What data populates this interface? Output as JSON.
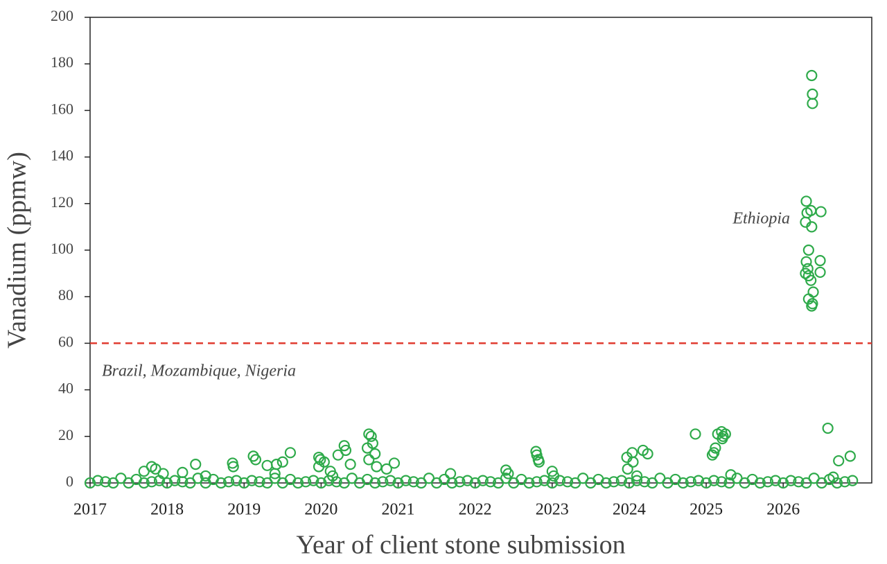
{
  "chart_data": {
    "type": "scatter",
    "x_label": "Year of client stone submission",
    "y_label": "Vanadium (ppmw)",
    "annotations": [
      "Ethiopia",
      "Brazil, Mozambique, Nigeria"
    ],
    "reference_line": {
      "value": 60,
      "color": "#e03a2f"
    },
    "color": "#2eaa4a",
    "xlim": [
      2017,
      2027.15
    ],
    "ylim": [
      0,
      200
    ],
    "xticks": [
      2017,
      2018,
      2019,
      2020,
      2021,
      2022,
      2023,
      2024,
      2025,
      2026
    ],
    "yticks": [
      0,
      20,
      40,
      60,
      80,
      100,
      120,
      140,
      160,
      180,
      200
    ],
    "x": [
      2026.37,
      2026.38,
      2026.38,
      2026.3,
      2026.31,
      2026.36,
      2026.49,
      2026.29,
      2026.37,
      2026.33,
      2026.3,
      2026.48,
      2026.32,
      2026.29,
      2026.48,
      2026.33,
      2026.36,
      2026.39,
      2026.33,
      2026.38,
      2026.37,
      2025.15,
      2025.2,
      2025.25,
      2025.22,
      2025.21,
      2025.12,
      2025.1,
      2025.08,
      2024.86,
      2026.58,
      2026.87,
      2026.72,
      2020.62,
      2020.65,
      2020.67,
      2020.6,
      2020.7,
      2020.62,
      2020.72,
      2020.85,
      2020.3,
      2020.32,
      2020.22,
      2019.97,
      2019.99,
      2020.38,
      2020.04,
      2019.97,
      2020.12,
      2020.15,
      2019.12,
      2019.15,
      2018.85,
      2018.86,
      2019.3,
      2019.5,
      2019.6,
      2019.42,
      2019.4,
      2018.37,
      2017.8,
      2017.85,
      2017.7,
      2017.95,
      2018.2,
      2018.5,
      2020.95,
      2022.79,
      2022.8,
      2022.82,
      2022.83,
      2022.4,
      2022.43,
      2023.0,
      2023.02,
      2023.97,
      2024.04,
      2024.18,
      2024.24,
      2024.05,
      2023.98,
      2024.1,
      2025.32,
      2021.68,
      2026.65,
      2017.0,
      2017.1,
      2017.2,
      2017.3,
      2017.4,
      2017.5,
      2017.6,
      2017.7,
      2017.8,
      2017.9,
      2018.0,
      2018.1,
      2018.2,
      2018.3,
      2018.4,
      2018.5,
      2018.6,
      2018.7,
      2018.8,
      2018.9,
      2019.0,
      2019.1,
      2019.2,
      2019.3,
      2019.4,
      2019.5,
      2019.6,
      2019.7,
      2019.8,
      2019.9,
      2020.0,
      2020.1,
      2020.2,
      2020.3,
      2020.4,
      2020.5,
      2020.6,
      2020.7,
      2020.8,
      2020.9,
      2021.0,
      2021.1,
      2021.2,
      2021.3,
      2021.4,
      2021.5,
      2021.6,
      2021.7,
      2021.8,
      2021.9,
      2022.0,
      2022.1,
      2022.2,
      2022.3,
      2022.4,
      2022.5,
      2022.6,
      2022.7,
      2022.8,
      2022.9,
      2023.0,
      2023.1,
      2023.2,
      2023.3,
      2023.4,
      2023.5,
      2023.6,
      2023.7,
      2023.8,
      2023.9,
      2024.0,
      2024.1,
      2024.2,
      2024.3,
      2024.4,
      2024.5,
      2024.6,
      2024.7,
      2024.8,
      2024.9,
      2025.0,
      2025.1,
      2025.2,
      2025.3,
      2025.4,
      2025.5,
      2025.6,
      2025.7,
      2025.8,
      2025.9,
      2026.0,
      2026.1,
      2026.2,
      2026.3,
      2026.4,
      2026.5,
      2026.6,
      2026.7,
      2026.8,
      2026.9
    ],
    "values": [
      175,
      167,
      163,
      121,
      116,
      117,
      116.5,
      112,
      110,
      100,
      95,
      95.5,
      92,
      90,
      90.5,
      89,
      87,
      82,
      79,
      77,
      76,
      21,
      22,
      21,
      20,
      19,
      15,
      13,
      12,
      21,
      23.5,
      11.5,
      9.5,
      21,
      20,
      17,
      15,
      12.5,
      10,
      7,
      6,
      16,
      14,
      12,
      11,
      10,
      8,
      9,
      7,
      5,
      3,
      11.5,
      10,
      8.5,
      7,
      7.5,
      9,
      13,
      8,
      4,
      8,
      7,
      6,
      5,
      4,
      4.5,
      3,
      8.5,
      13.5,
      12,
      10,
      9,
      5.5,
      4,
      5,
      3,
      11,
      13,
      14,
      12.5,
      9,
      6,
      3,
      3.5,
      4,
      2.5,
      0,
      1,
      0.5,
      0,
      2,
      0,
      1.5,
      0,
      0.5,
      1,
      0,
      1,
      0.5,
      0,
      2,
      0,
      1.5,
      0,
      0.5,
      1,
      0,
      1,
      0.5,
      0,
      2,
      0,
      1.5,
      0,
      0.5,
      1,
      0,
      1,
      0.5,
      0,
      2,
      0,
      1.5,
      0,
      0.5,
      1,
      0,
      1,
      0.5,
      0,
      2,
      0,
      1.5,
      0,
      0.5,
      1,
      0,
      1,
      0.5,
      0,
      2,
      0,
      1.5,
      0,
      0.5,
      1,
      0,
      1,
      0.5,
      0,
      2,
      0,
      1.5,
      0,
      0.5,
      1,
      0,
      1,
      0.5,
      0,
      2,
      0,
      1.5,
      0,
      0.5,
      1,
      0,
      1,
      0.5,
      0,
      2,
      0,
      1.5,
      0,
      0.5,
      1,
      0,
      1,
      0.5,
      0,
      2,
      0,
      1.5,
      0,
      0.5,
      1
    ]
  }
}
